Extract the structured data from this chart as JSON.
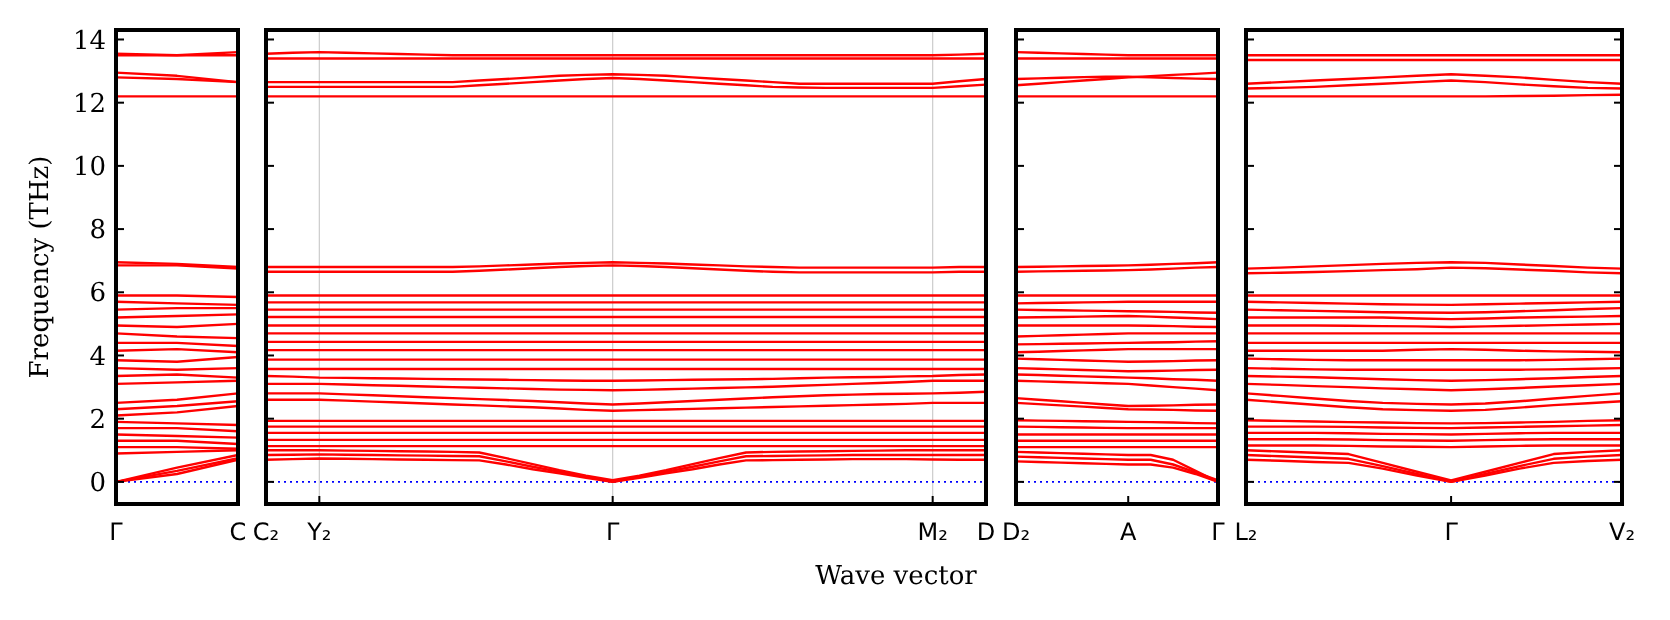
{
  "chart_data": [
    {
      "type": "line",
      "ylabel": "Frequency (THz)",
      "color": "#ff0000",
      "categories": [
        "Γ",
        null,
        "C"
      ],
      "ylim": [
        -0.7,
        14.3
      ],
      "yticks": [
        0,
        2,
        4,
        6,
        8,
        10,
        12,
        14
      ],
      "ref_lines": [
        {
          "axis": "y",
          "value": 0,
          "color": "#0000ff",
          "line_style": "dotted"
        }
      ],
      "series": [
        {
          "values": [
            13.55,
            13.5,
            13.6
          ]
        },
        {
          "values": [
            13.5,
            13.5,
            13.5
          ]
        },
        {
          "values": [
            12.95,
            12.85,
            12.65
          ]
        },
        {
          "values": [
            12.8,
            12.75,
            12.65
          ]
        },
        {
          "values": [
            12.2,
            12.2,
            12.2
          ]
        },
        {
          "values": [
            6.95,
            6.9,
            6.8
          ]
        },
        {
          "values": [
            6.85,
            6.85,
            6.75
          ]
        },
        {
          "values": [
            5.9,
            5.9,
            5.85
          ]
        },
        {
          "values": [
            5.7,
            5.65,
            5.6
          ]
        },
        {
          "values": [
            5.45,
            5.5,
            5.5
          ]
        },
        {
          "values": [
            5.2,
            5.25,
            5.3
          ]
        },
        {
          "values": [
            4.95,
            4.9,
            5.0
          ]
        },
        {
          "values": [
            4.7,
            4.6,
            4.55
          ]
        },
        {
          "values": [
            4.4,
            4.4,
            4.3
          ]
        },
        {
          "values": [
            4.15,
            4.2,
            4.1
          ]
        },
        {
          "values": [
            3.85,
            3.8,
            3.95
          ]
        },
        {
          "values": [
            3.6,
            3.55,
            3.6
          ]
        },
        {
          "values": [
            3.35,
            3.4,
            3.3
          ]
        },
        {
          "values": [
            3.1,
            3.15,
            3.2
          ]
        },
        {
          "values": [
            2.5,
            2.6,
            2.8
          ]
        },
        {
          "values": [
            2.3,
            2.4,
            2.55
          ]
        },
        {
          "values": [
            2.1,
            2.2,
            2.4
          ]
        },
        {
          "values": [
            1.9,
            1.85,
            1.8
          ]
        },
        {
          "values": [
            1.7,
            1.7,
            1.6
          ]
        },
        {
          "values": [
            1.5,
            1.45,
            1.4
          ]
        },
        {
          "values": [
            1.3,
            1.3,
            1.2
          ]
        },
        {
          "values": [
            1.1,
            1.1,
            1.05
          ]
        },
        {
          "values": [
            0.9,
            0.95,
            1.0
          ]
        },
        {
          "values": [
            0.0,
            0.45,
            0.85
          ]
        },
        {
          "values": [
            0.0,
            0.35,
            0.75
          ]
        },
        {
          "values": [
            0.0,
            0.25,
            0.7
          ]
        }
      ]
    },
    {
      "type": "line",
      "xlabel": "Wave vector",
      "color": "#ff0000",
      "grid": "x",
      "tick_labels": "x",
      "categories": [
        "C₂",
        null,
        "Y₂",
        null,
        null,
        null,
        null,
        null,
        null,
        null,
        null,
        null,
        null,
        "Γ",
        null,
        null,
        null,
        null,
        null,
        null,
        null,
        null,
        null,
        null,
        null,
        "M₂",
        null,
        "D"
      ],
      "ylim": [
        -0.7,
        14.3
      ],
      "yticks": [
        0,
        2,
        4,
        6,
        8,
        10,
        12,
        14
      ],
      "ref_lines": [
        {
          "axis": "y",
          "value": 0,
          "color": "#0000ff",
          "line_style": "dotted"
        }
      ],
      "series": [
        {
          "values": [
            13.55,
            13.58,
            13.6,
            13.58,
            13.56,
            13.54,
            13.52,
            13.5,
            13.5,
            13.5,
            13.5,
            13.5,
            13.5,
            13.5,
            13.5,
            13.5,
            13.5,
            13.5,
            13.5,
            13.5,
            13.5,
            13.5,
            13.5,
            13.5,
            13.5,
            13.5,
            13.52,
            13.55
          ]
        },
        {
          "values": [
            13.4,
            13.4,
            13.4,
            13.4,
            13.4,
            13.4,
            13.4,
            13.4,
            13.4,
            13.4,
            13.4,
            13.4,
            13.4,
            13.4,
            13.4,
            13.4,
            13.4,
            13.4,
            13.4,
            13.4,
            13.4,
            13.4,
            13.4,
            13.4,
            13.4,
            13.4,
            13.4,
            13.4
          ]
        },
        {
          "values": [
            12.65,
            12.65,
            12.65,
            12.65,
            12.65,
            12.65,
            12.65,
            12.65,
            12.7,
            12.75,
            12.8,
            12.85,
            12.88,
            12.9,
            12.88,
            12.85,
            12.8,
            12.75,
            12.7,
            12.65,
            12.6,
            12.6,
            12.6,
            12.6,
            12.6,
            12.6,
            12.68,
            12.75
          ]
        },
        {
          "values": [
            12.5,
            12.5,
            12.5,
            12.5,
            12.5,
            12.5,
            12.5,
            12.5,
            12.55,
            12.6,
            12.65,
            12.7,
            12.75,
            12.78,
            12.75,
            12.7,
            12.65,
            12.6,
            12.55,
            12.5,
            12.48,
            12.47,
            12.47,
            12.47,
            12.47,
            12.47,
            12.52,
            12.57
          ]
        },
        {
          "values": [
            12.2,
            12.2,
            12.2,
            12.2,
            12.2,
            12.2,
            12.2,
            12.2,
            12.2,
            12.2,
            12.2,
            12.2,
            12.2,
            12.2,
            12.2,
            12.2,
            12.2,
            12.2,
            12.2,
            12.2,
            12.2,
            12.2,
            12.2,
            12.2,
            12.2,
            12.2,
            12.2,
            12.2
          ]
        },
        {
          "values": [
            6.8,
            6.8,
            6.8,
            6.8,
            6.8,
            6.8,
            6.8,
            6.8,
            6.82,
            6.85,
            6.88,
            6.91,
            6.93,
            6.95,
            6.93,
            6.91,
            6.88,
            6.85,
            6.82,
            6.8,
            6.78,
            6.78,
            6.78,
            6.78,
            6.78,
            6.78,
            6.8,
            6.8
          ]
        },
        {
          "values": [
            6.65,
            6.65,
            6.65,
            6.65,
            6.65,
            6.65,
            6.65,
            6.65,
            6.68,
            6.72,
            6.76,
            6.8,
            6.83,
            6.85,
            6.83,
            6.8,
            6.76,
            6.72,
            6.68,
            6.65,
            6.63,
            6.63,
            6.63,
            6.63,
            6.63,
            6.63,
            6.65,
            6.65
          ]
        },
        {
          "values": [
            5.9,
            5.9,
            5.9,
            5.9,
            5.9,
            5.9,
            5.9,
            5.9,
            5.9,
            5.9,
            5.9,
            5.9,
            5.9,
            5.9,
            5.9,
            5.9,
            5.9,
            5.9,
            5.9,
            5.9,
            5.9,
            5.9,
            5.9,
            5.9,
            5.9,
            5.9,
            5.9,
            5.9
          ]
        },
        {
          "values": [
            5.68,
            5.68,
            5.68,
            5.68,
            5.68,
            5.68,
            5.68,
            5.68,
            5.68,
            5.68,
            5.68,
            5.68,
            5.68,
            5.68,
            5.68,
            5.68,
            5.68,
            5.68,
            5.68,
            5.68,
            5.68,
            5.68,
            5.68,
            5.68,
            5.68,
            5.68,
            5.68,
            5.68
          ]
        },
        {
          "values": [
            5.45,
            5.45,
            5.45,
            5.45,
            5.45,
            5.45,
            5.45,
            5.45,
            5.45,
            5.45,
            5.45,
            5.45,
            5.45,
            5.45,
            5.45,
            5.45,
            5.45,
            5.45,
            5.45,
            5.45,
            5.45,
            5.45,
            5.45,
            5.45,
            5.45,
            5.45,
            5.45,
            5.45
          ]
        },
        {
          "values": [
            5.22,
            5.22,
            5.22,
            5.22,
            5.22,
            5.22,
            5.22,
            5.22,
            5.22,
            5.22,
            5.22,
            5.22,
            5.22,
            5.22,
            5.22,
            5.22,
            5.22,
            5.22,
            5.22,
            5.22,
            5.22,
            5.22,
            5.22,
            5.22,
            5.22,
            5.22,
            5.22,
            5.22
          ]
        },
        {
          "values": [
            4.95,
            4.95,
            4.95,
            4.95,
            4.95,
            4.95,
            4.95,
            4.95,
            4.95,
            4.95,
            4.95,
            4.95,
            4.95,
            4.95,
            4.95,
            4.95,
            4.95,
            4.95,
            4.95,
            4.95,
            4.95,
            4.95,
            4.95,
            4.95,
            4.95,
            4.95,
            4.95,
            4.95
          ]
        },
        {
          "values": [
            4.7,
            4.7,
            4.7,
            4.7,
            4.7,
            4.7,
            4.7,
            4.7,
            4.7,
            4.7,
            4.7,
            4.7,
            4.7,
            4.7,
            4.7,
            4.7,
            4.7,
            4.7,
            4.7,
            4.7,
            4.7,
            4.7,
            4.7,
            4.7,
            4.7,
            4.7,
            4.7,
            4.7
          ]
        },
        {
          "values": [
            4.43,
            4.43,
            4.43,
            4.43,
            4.43,
            4.43,
            4.43,
            4.43,
            4.43,
            4.43,
            4.43,
            4.43,
            4.43,
            4.43,
            4.43,
            4.43,
            4.43,
            4.43,
            4.43,
            4.43,
            4.43,
            4.43,
            4.43,
            4.43,
            4.43,
            4.43,
            4.43,
            4.43
          ]
        },
        {
          "values": [
            4.17,
            4.17,
            4.17,
            4.17,
            4.17,
            4.17,
            4.17,
            4.17,
            4.17,
            4.17,
            4.17,
            4.17,
            4.17,
            4.17,
            4.17,
            4.17,
            4.17,
            4.17,
            4.17,
            4.17,
            4.17,
            4.17,
            4.17,
            4.17,
            4.17,
            4.17,
            4.17,
            4.17
          ]
        },
        {
          "values": [
            3.87,
            3.87,
            3.87,
            3.87,
            3.87,
            3.87,
            3.87,
            3.87,
            3.87,
            3.87,
            3.87,
            3.87,
            3.87,
            3.87,
            3.87,
            3.87,
            3.87,
            3.87,
            3.87,
            3.87,
            3.87,
            3.87,
            3.87,
            3.87,
            3.87,
            3.87,
            3.87,
            3.87
          ]
        },
        {
          "values": [
            3.57,
            3.57,
            3.57,
            3.57,
            3.57,
            3.57,
            3.57,
            3.57,
            3.57,
            3.57,
            3.57,
            3.57,
            3.57,
            3.57,
            3.57,
            3.57,
            3.57,
            3.57,
            3.57,
            3.57,
            3.57,
            3.57,
            3.57,
            3.57,
            3.57,
            3.57,
            3.57,
            3.57
          ]
        },
        {
          "values": [
            3.35,
            3.33,
            3.3,
            3.29,
            3.28,
            3.27,
            3.26,
            3.25,
            3.24,
            3.23,
            3.22,
            3.21,
            3.2,
            3.2,
            3.21,
            3.22,
            3.23,
            3.24,
            3.25,
            3.26,
            3.28,
            3.3,
            3.31,
            3.32,
            3.34,
            3.35,
            3.38,
            3.4
          ]
        },
        {
          "values": [
            3.1,
            3.1,
            3.1,
            3.08,
            3.06,
            3.04,
            3.02,
            3.0,
            2.98,
            2.96,
            2.94,
            2.92,
            2.91,
            2.9,
            2.91,
            2.93,
            2.95,
            2.97,
            2.99,
            3.01,
            3.04,
            3.07,
            3.1,
            3.13,
            3.16,
            3.2,
            3.2,
            3.2
          ]
        },
        {
          "values": [
            2.8,
            2.8,
            2.8,
            2.77,
            2.74,
            2.71,
            2.68,
            2.65,
            2.62,
            2.59,
            2.56,
            2.52,
            2.48,
            2.45,
            2.48,
            2.52,
            2.56,
            2.6,
            2.64,
            2.68,
            2.71,
            2.74,
            2.76,
            2.78,
            2.79,
            2.8,
            2.82,
            2.85
          ]
        },
        {
          "values": [
            2.6,
            2.6,
            2.6,
            2.57,
            2.54,
            2.51,
            2.48,
            2.45,
            2.42,
            2.39,
            2.36,
            2.32,
            2.28,
            2.25,
            2.27,
            2.29,
            2.31,
            2.33,
            2.35,
            2.37,
            2.39,
            2.41,
            2.43,
            2.45,
            2.47,
            2.5,
            2.5,
            2.5
          ]
        },
        {
          "values": [
            1.93,
            1.93,
            1.93,
            1.93,
            1.93,
            1.93,
            1.93,
            1.93,
            1.93,
            1.93,
            1.93,
            1.93,
            1.93,
            1.93,
            1.93,
            1.93,
            1.93,
            1.93,
            1.93,
            1.93,
            1.93,
            1.93,
            1.93,
            1.93,
            1.93,
            1.93,
            1.93,
            1.93
          ]
        },
        {
          "values": [
            1.75,
            1.75,
            1.75,
            1.75,
            1.75,
            1.75,
            1.75,
            1.75,
            1.75,
            1.75,
            1.75,
            1.75,
            1.75,
            1.75,
            1.75,
            1.75,
            1.75,
            1.75,
            1.75,
            1.75,
            1.75,
            1.75,
            1.75,
            1.75,
            1.75,
            1.75,
            1.75,
            1.75
          ]
        },
        {
          "values": [
            1.55,
            1.55,
            1.55,
            1.55,
            1.55,
            1.55,
            1.55,
            1.55,
            1.55,
            1.55,
            1.55,
            1.55,
            1.55,
            1.55,
            1.55,
            1.55,
            1.55,
            1.55,
            1.55,
            1.55,
            1.55,
            1.55,
            1.55,
            1.55,
            1.55,
            1.55,
            1.55,
            1.55
          ]
        },
        {
          "values": [
            1.33,
            1.33,
            1.33,
            1.33,
            1.33,
            1.33,
            1.33,
            1.33,
            1.33,
            1.33,
            1.33,
            1.33,
            1.33,
            1.33,
            1.33,
            1.33,
            1.33,
            1.33,
            1.33,
            1.33,
            1.33,
            1.33,
            1.33,
            1.33,
            1.33,
            1.33,
            1.33,
            1.33
          ]
        },
        {
          "values": [
            1.13,
            1.13,
            1.13,
            1.13,
            1.13,
            1.13,
            1.13,
            1.13,
            1.13,
            1.13,
            1.13,
            1.13,
            1.13,
            1.13,
            1.13,
            1.13,
            1.13,
            1.13,
            1.13,
            1.13,
            1.13,
            1.13,
            1.13,
            1.13,
            1.13,
            1.13,
            1.13,
            1.13
          ]
        },
        {
          "values": [
            0.7,
            0.72,
            0.74,
            0.73,
            0.72,
            0.71,
            0.7,
            0.69,
            0.68,
            0.55,
            0.4,
            0.27,
            0.13,
            0.0,
            0.13,
            0.27,
            0.4,
            0.55,
            0.68,
            0.69,
            0.7,
            0.71,
            0.72,
            0.72,
            0.72,
            0.71,
            0.7,
            0.7
          ]
        },
        {
          "values": [
            0.85,
            0.86,
            0.87,
            0.86,
            0.85,
            0.84,
            0.83,
            0.82,
            0.81,
            0.65,
            0.48,
            0.32,
            0.16,
            0.0,
            0.16,
            0.32,
            0.48,
            0.65,
            0.81,
            0.82,
            0.83,
            0.84,
            0.85,
            0.85,
            0.85,
            0.85,
            0.85,
            0.85
          ]
        },
        {
          "values": [
            1.0,
            1.0,
            1.0,
            0.99,
            0.98,
            0.97,
            0.96,
            0.95,
            0.93,
            0.75,
            0.56,
            0.37,
            0.2,
            0.05,
            0.2,
            0.37,
            0.56,
            0.75,
            0.93,
            0.95,
            0.96,
            0.97,
            0.98,
            0.99,
            1.0,
            1.0,
            1.0,
            1.0
          ]
        }
      ]
    },
    {
      "type": "line",
      "color": "#ff0000",
      "tick_labels": "x",
      "categories": [
        "D₂",
        null,
        null,
        null,
        null,
        "A",
        null,
        null,
        null,
        "Γ"
      ],
      "ylim": [
        -0.7,
        14.3
      ],
      "yticks": [
        0,
        2,
        4,
        6,
        8,
        10,
        12,
        14
      ],
      "ref_lines": [
        {
          "axis": "y",
          "value": 0,
          "color": "#0000ff",
          "line_style": "dotted"
        }
      ],
      "series": [
        {
          "values": [
            13.6,
            13.58,
            13.56,
            13.54,
            13.52,
            13.5,
            13.5,
            13.5,
            13.5,
            13.5
          ]
        },
        {
          "values": [
            13.4,
            13.4,
            13.4,
            13.4,
            13.4,
            13.4,
            13.4,
            13.4,
            13.4,
            13.4
          ]
        },
        {
          "values": [
            12.75,
            12.77,
            12.79,
            12.81,
            12.82,
            12.82,
            12.8,
            12.78,
            12.76,
            12.75
          ]
        },
        {
          "values": [
            12.55,
            12.6,
            12.65,
            12.7,
            12.75,
            12.8,
            12.84,
            12.88,
            12.91,
            12.95
          ]
        },
        {
          "values": [
            12.2,
            12.2,
            12.2,
            12.2,
            12.2,
            12.2,
            12.2,
            12.2,
            12.2,
            12.2
          ]
        },
        {
          "values": [
            6.8,
            6.81,
            6.82,
            6.83,
            6.84,
            6.85,
            6.87,
            6.9,
            6.92,
            6.95
          ]
        },
        {
          "values": [
            6.65,
            6.66,
            6.67,
            6.68,
            6.69,
            6.7,
            6.72,
            6.75,
            6.78,
            6.8
          ]
        },
        {
          "values": [
            5.9,
            5.9,
            5.9,
            5.9,
            5.9,
            5.9,
            5.9,
            5.9,
            5.9,
            5.9
          ]
        },
        {
          "values": [
            5.65,
            5.66,
            5.67,
            5.68,
            5.69,
            5.7,
            5.7,
            5.7,
            5.7,
            5.7
          ]
        },
        {
          "values": [
            5.45,
            5.44,
            5.43,
            5.42,
            5.41,
            5.4,
            5.39,
            5.38,
            5.36,
            5.35
          ]
        },
        {
          "values": [
            5.2,
            5.21,
            5.22,
            5.23,
            5.24,
            5.25,
            5.23,
            5.2,
            5.18,
            5.15
          ]
        },
        {
          "values": [
            4.95,
            4.95,
            4.95,
            4.95,
            4.95,
            4.95,
            4.94,
            4.93,
            4.91,
            4.9
          ]
        },
        {
          "values": [
            4.6,
            4.62,
            4.64,
            4.66,
            4.68,
            4.7,
            4.7,
            4.7,
            4.7,
            4.7
          ]
        },
        {
          "values": [
            4.35,
            4.36,
            4.37,
            4.38,
            4.39,
            4.4,
            4.41,
            4.42,
            4.44,
            4.45
          ]
        },
        {
          "values": [
            4.1,
            4.12,
            4.14,
            4.16,
            4.18,
            4.2,
            4.2,
            4.2,
            4.2,
            4.2
          ]
        },
        {
          "values": [
            3.9,
            3.88,
            3.86,
            3.84,
            3.82,
            3.8,
            3.81,
            3.82,
            3.84,
            3.85
          ]
        },
        {
          "values": [
            3.6,
            3.58,
            3.56,
            3.54,
            3.52,
            3.5,
            3.51,
            3.52,
            3.54,
            3.55
          ]
        },
        {
          "values": [
            3.4,
            3.38,
            3.36,
            3.34,
            3.32,
            3.3,
            3.28,
            3.25,
            3.23,
            3.2
          ]
        },
        {
          "values": [
            3.2,
            3.18,
            3.16,
            3.14,
            3.12,
            3.1,
            3.05,
            3.0,
            2.95,
            2.9
          ]
        },
        {
          "values": [
            2.65,
            2.6,
            2.55,
            2.5,
            2.45,
            2.4,
            2.41,
            2.42,
            2.44,
            2.45
          ]
        },
        {
          "values": [
            2.5,
            2.46,
            2.42,
            2.38,
            2.34,
            2.3,
            2.29,
            2.28,
            2.26,
            2.25
          ]
        },
        {
          "values": [
            1.95,
            1.94,
            1.93,
            1.92,
            1.91,
            1.9,
            1.89,
            1.88,
            1.86,
            1.85
          ]
        },
        {
          "values": [
            1.75,
            1.74,
            1.73,
            1.72,
            1.71,
            1.7,
            1.7,
            1.7,
            1.7,
            1.7
          ]
        },
        {
          "values": [
            1.5,
            1.5,
            1.5,
            1.5,
            1.5,
            1.5,
            1.5,
            1.5,
            1.5,
            1.5
          ]
        },
        {
          "values": [
            1.3,
            1.3,
            1.3,
            1.3,
            1.3,
            1.3,
            1.3,
            1.3,
            1.3,
            1.3
          ]
        },
        {
          "values": [
            1.1,
            1.1,
            1.1,
            1.1,
            1.1,
            1.1,
            1.1,
            1.1,
            1.1,
            1.1
          ]
        },
        {
          "values": [
            0.95,
            0.93,
            0.91,
            0.89,
            0.87,
            0.85,
            0.85,
            0.7,
            0.35,
            0.0
          ]
        },
        {
          "values": [
            0.8,
            0.78,
            0.76,
            0.74,
            0.72,
            0.7,
            0.7,
            0.55,
            0.3,
            0.05
          ]
        },
        {
          "values": [
            0.65,
            0.63,
            0.61,
            0.59,
            0.57,
            0.55,
            0.55,
            0.45,
            0.25,
            0.0
          ]
        }
      ]
    },
    {
      "type": "line",
      "color": "#ff0000",
      "tick_labels": "x",
      "categories": [
        "L₂",
        null,
        null,
        null,
        null,
        null,
        "Γ",
        null,
        null,
        null,
        null,
        "V₂"
      ],
      "ylim": [
        -0.7,
        14.3
      ],
      "yticks": [
        0,
        2,
        4,
        6,
        8,
        10,
        12,
        14
      ],
      "ref_lines": [
        {
          "axis": "y",
          "value": 0,
          "color": "#0000ff",
          "line_style": "dotted"
        }
      ],
      "series": [
        {
          "values": [
            13.5,
            13.5,
            13.5,
            13.5,
            13.5,
            13.5,
            13.5,
            13.5,
            13.5,
            13.5,
            13.5,
            13.5
          ]
        },
        {
          "values": [
            13.35,
            13.35,
            13.35,
            13.35,
            13.35,
            13.35,
            13.35,
            13.35,
            13.35,
            13.35,
            13.35,
            13.35
          ]
        },
        {
          "values": [
            12.6,
            12.65,
            12.7,
            12.75,
            12.8,
            12.85,
            12.9,
            12.85,
            12.8,
            12.72,
            12.65,
            12.6
          ]
        },
        {
          "values": [
            12.45,
            12.47,
            12.5,
            12.55,
            12.6,
            12.65,
            12.7,
            12.65,
            12.58,
            12.52,
            12.47,
            12.45
          ]
        },
        {
          "values": [
            12.2,
            12.2,
            12.2,
            12.2,
            12.2,
            12.2,
            12.2,
            12.2,
            12.21,
            12.22,
            12.24,
            12.25
          ]
        },
        {
          "values": [
            6.75,
            6.78,
            6.82,
            6.86,
            6.9,
            6.93,
            6.95,
            6.93,
            6.88,
            6.83,
            6.78,
            6.75
          ]
        },
        {
          "values": [
            6.6,
            6.62,
            6.64,
            6.67,
            6.7,
            6.73,
            6.78,
            6.76,
            6.72,
            6.68,
            6.63,
            6.6
          ]
        },
        {
          "values": [
            5.9,
            5.9,
            5.9,
            5.9,
            5.9,
            5.9,
            5.9,
            5.9,
            5.9,
            5.9,
            5.9,
            5.9
          ]
        },
        {
          "values": [
            5.7,
            5.68,
            5.66,
            5.64,
            5.62,
            5.61,
            5.6,
            5.62,
            5.64,
            5.66,
            5.68,
            5.7
          ]
        },
        {
          "values": [
            5.45,
            5.43,
            5.41,
            5.39,
            5.37,
            5.36,
            5.35,
            5.37,
            5.4,
            5.43,
            5.47,
            5.5
          ]
        },
        {
          "values": [
            5.2,
            5.2,
            5.2,
            5.2,
            5.2,
            5.17,
            5.15,
            5.17,
            5.2,
            5.22,
            5.23,
            5.25
          ]
        },
        {
          "values": [
            4.95,
            4.95,
            4.95,
            4.94,
            4.93,
            4.92,
            4.9,
            4.92,
            4.94,
            4.96,
            4.98,
            5.0
          ]
        },
        {
          "values": [
            4.7,
            4.7,
            4.7,
            4.7,
            4.7,
            4.7,
            4.7,
            4.7,
            4.7,
            4.7,
            4.7,
            4.7
          ]
        },
        {
          "values": [
            4.4,
            4.4,
            4.4,
            4.4,
            4.4,
            4.4,
            4.4,
            4.4,
            4.4,
            4.4,
            4.4,
            4.4
          ]
        },
        {
          "values": [
            4.15,
            4.15,
            4.15,
            4.15,
            4.15,
            4.18,
            4.2,
            4.18,
            4.15,
            4.13,
            4.12,
            4.1
          ]
        },
        {
          "values": [
            3.9,
            3.88,
            3.86,
            3.85,
            3.85,
            3.85,
            3.85,
            3.85,
            3.85,
            3.86,
            3.88,
            3.9
          ]
        },
        {
          "values": [
            3.6,
            3.58,
            3.56,
            3.55,
            3.55,
            3.55,
            3.55,
            3.55,
            3.55,
            3.56,
            3.58,
            3.6
          ]
        },
        {
          "values": [
            3.35,
            3.33,
            3.31,
            3.28,
            3.25,
            3.22,
            3.2,
            3.22,
            3.25,
            3.28,
            3.32,
            3.35
          ]
        },
        {
          "values": [
            3.1,
            3.07,
            3.03,
            3.0,
            2.96,
            2.93,
            2.9,
            2.93,
            2.97,
            3.02,
            3.06,
            3.1
          ]
        },
        {
          "values": [
            2.8,
            2.72,
            2.64,
            2.56,
            2.5,
            2.47,
            2.45,
            2.48,
            2.55,
            2.64,
            2.72,
            2.8
          ]
        },
        {
          "values": [
            2.6,
            2.52,
            2.44,
            2.36,
            2.3,
            2.27,
            2.25,
            2.28,
            2.35,
            2.43,
            2.49,
            2.55
          ]
        },
        {
          "values": [
            1.95,
            1.93,
            1.91,
            1.89,
            1.88,
            1.86,
            1.85,
            1.86,
            1.88,
            1.9,
            1.93,
            1.95
          ]
        },
        {
          "values": [
            1.75,
            1.75,
            1.75,
            1.74,
            1.72,
            1.71,
            1.7,
            1.72,
            1.74,
            1.76,
            1.78,
            1.8
          ]
        },
        {
          "values": [
            1.55,
            1.55,
            1.55,
            1.54,
            1.52,
            1.51,
            1.5,
            1.52,
            1.54,
            1.55,
            1.55,
            1.55
          ]
        },
        {
          "values": [
            1.35,
            1.35,
            1.35,
            1.34,
            1.32,
            1.31,
            1.3,
            1.32,
            1.34,
            1.35,
            1.35,
            1.35
          ]
        },
        {
          "values": [
            1.15,
            1.15,
            1.15,
            1.14,
            1.12,
            1.11,
            1.1,
            1.12,
            1.14,
            1.15,
            1.15,
            1.15
          ]
        },
        {
          "values": [
            0.7,
            0.67,
            0.63,
            0.6,
            0.42,
            0.2,
            0.0,
            0.2,
            0.42,
            0.6,
            0.66,
            0.7
          ]
        },
        {
          "values": [
            0.85,
            0.81,
            0.77,
            0.73,
            0.5,
            0.25,
            0.0,
            0.25,
            0.5,
            0.73,
            0.8,
            0.85
          ]
        },
        {
          "values": [
            1.0,
            0.96,
            0.92,
            0.88,
            0.6,
            0.32,
            0.05,
            0.32,
            0.6,
            0.88,
            0.95,
            1.0
          ]
        }
      ]
    }
  ]
}
